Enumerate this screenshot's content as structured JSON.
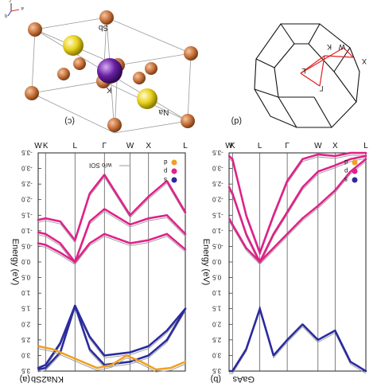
{
  "panel_crystal": {
    "label": "(c)",
    "atoms": [
      "Sb",
      "K",
      "Na"
    ],
    "axes": [
      "a",
      "b",
      "c"
    ]
  },
  "panel_bz": {
    "label": "(d)",
    "points": [
      "K",
      "W",
      "X",
      "L",
      "Γ"
    ]
  },
  "chart_data": [
    {
      "type": "line",
      "panel_label": "(a)",
      "material": "KNa2Sb",
      "ylabel": "Energy (eV)",
      "kpath": [
        "L",
        "X",
        "W",
        "Γ",
        "L",
        "K",
        "W"
      ],
      "kpath_x": [
        0,
        1,
        1.5,
        2.2,
        3.0,
        3.8,
        4.0
      ],
      "ylim": [
        -3.5,
        3.5
      ],
      "yticks": [
        "-3.5",
        "-3.0",
        "-2.5",
        "-2.0",
        "-1.5",
        "-1.0",
        "-0.5",
        "0.0",
        "0.5",
        "1.0",
        "1.5",
        "2.0",
        "2.5",
        "3.0",
        "3.5"
      ],
      "legend": [
        "s",
        "p",
        "d"
      ],
      "legend_colors": [
        "#2a2aa0",
        "#e0208a",
        "#f0a020"
      ],
      "annotation": "w/o SOI",
      "series": [
        {
          "role": "p",
          "x": [
            0,
            0.5,
            1,
            1.5,
            2.2,
            2.6,
            3.0,
            3.4,
            3.8,
            4.0
          ],
          "y": [
            -1.6,
            -2.6,
            -2.1,
            -1.5,
            -2.8,
            -2.2,
            -0.7,
            -1.3,
            -1.4,
            -1.35
          ]
        },
        {
          "role": "p",
          "x": [
            0,
            0.5,
            1,
            1.5,
            2.2,
            2.6,
            3.0,
            3.4,
            3.8,
            4.0
          ],
          "y": [
            -0.9,
            -1.5,
            -1.4,
            -1.2,
            -1.7,
            -1.3,
            0.0,
            -0.6,
            -0.9,
            -0.95
          ]
        },
        {
          "role": "p",
          "x": [
            0,
            0.5,
            1,
            1.5,
            2.2,
            2.6,
            3.0,
            3.4,
            3.8,
            4.0
          ],
          "y": [
            -0.4,
            -0.9,
            -0.7,
            -0.6,
            -0.9,
            -0.6,
            0.0,
            -0.3,
            -0.55,
            -0.6
          ]
        },
        {
          "role": "s",
          "x": [
            0,
            0.5,
            1,
            1.5,
            2.2,
            2.6,
            3.0,
            3.4,
            3.8,
            4.0
          ],
          "y": [
            1.5,
            2.2,
            2.7,
            2.9,
            3.0,
            2.4,
            1.4,
            2.6,
            3.3,
            3.4
          ]
        },
        {
          "role": "s",
          "x": [
            0,
            0.5,
            1,
            1.5,
            2.2,
            2.6,
            3.0,
            3.4,
            3.8,
            4.0
          ],
          "y": [
            1.5,
            2.5,
            3.0,
            3.2,
            3.3,
            2.8,
            1.4,
            2.9,
            3.4,
            3.45
          ]
        },
        {
          "role": "d",
          "x": [
            0,
            0.4,
            0.8,
            1.2,
            1.6,
            2.0,
            2.4,
            2.8,
            3.2,
            3.6,
            4.0
          ],
          "y": [
            3.2,
            3.4,
            3.45,
            3.2,
            3.0,
            3.3,
            3.4,
            3.2,
            3.0,
            2.8,
            2.7
          ]
        }
      ]
    },
    {
      "type": "line",
      "panel_label": "(b)",
      "material": "GaAs",
      "ylabel": "Energy (eV)",
      "kpath": [
        "L",
        "X",
        "W",
        "Γ",
        "L",
        "K",
        "W"
      ],
      "kpath_x": [
        0,
        0.9,
        1.4,
        2.3,
        3.1,
        3.9,
        4.0
      ],
      "ylim": [
        -3.5,
        3.5
      ],
      "yticks": [
        "-3.5",
        "-3.0",
        "-2.5",
        "-2.0",
        "-1.5",
        "-1.0",
        "-0.5",
        "0.0",
        "0.5",
        "1.0",
        "1.5",
        "2.0",
        "2.5",
        "3.0",
        "3.5"
      ],
      "legend": [
        "s",
        "p",
        "d"
      ],
      "legend_colors": [
        "#2a2aa0",
        "#e0208a",
        "#f0a020"
      ],
      "series": [
        {
          "role": "p",
          "x": [
            0,
            0.45,
            0.9,
            1.4,
            1.85,
            2.3,
            2.7,
            3.1,
            3.5,
            3.9,
            4.0
          ],
          "y": [
            -3.5,
            -3.5,
            -3.4,
            -3.45,
            -3.3,
            -2.6,
            -1.5,
            -0.3,
            -1.5,
            -3.3,
            -3.4
          ]
        },
        {
          "role": "p",
          "x": [
            0,
            0.45,
            0.9,
            1.4,
            1.85,
            2.3,
            2.7,
            3.1,
            3.5,
            3.9,
            4.0
          ],
          "y": [
            -3.4,
            -3.3,
            -3.1,
            -2.9,
            -2.4,
            -1.6,
            -0.9,
            0.0,
            -0.9,
            -2.2,
            -2.4
          ]
        },
        {
          "role": "p",
          "x": [
            0,
            0.45,
            0.9,
            1.4,
            1.85,
            2.3,
            2.7,
            3.1,
            3.5,
            3.9,
            4.0
          ],
          "y": [
            -3.3,
            -2.9,
            -2.3,
            -1.8,
            -1.4,
            -0.9,
            -0.45,
            0.0,
            -0.45,
            -1.2,
            -1.4
          ]
        },
        {
          "role": "s",
          "x": [
            0,
            0.45,
            0.9,
            1.4,
            1.85,
            2.3,
            2.7,
            3.1,
            3.5,
            3.9,
            4.0
          ],
          "y": [
            3.5,
            3.2,
            2.2,
            2.5,
            2.0,
            2.5,
            3.0,
            1.5,
            2.8,
            3.5,
            3.5
          ]
        }
      ]
    }
  ]
}
